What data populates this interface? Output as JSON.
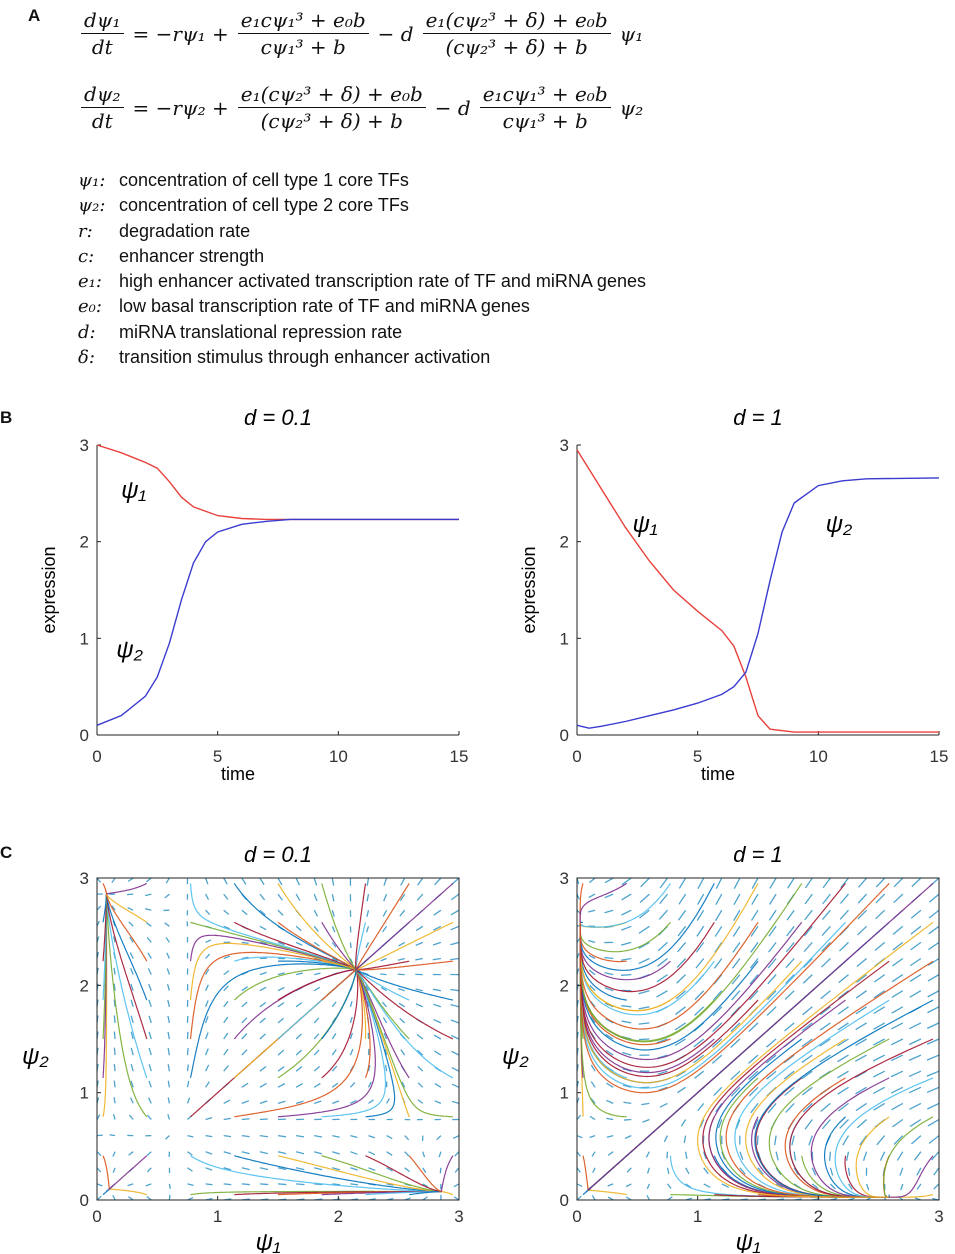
{
  "panel_labels": [
    "A",
    "B",
    "C"
  ],
  "equations": {
    "eq1": {
      "lhs_num": "dψ₁",
      "lhs_den": "dt",
      "term1": "= −rψ₁ +",
      "f1_num": "e₁cψ₁³ + e₀b",
      "f1_den": "cψ₁³ + b",
      "minus_d": "− d",
      "f2_num": "e₁(cψ₂³ + δ) + e₀b",
      "f2_den": "(cψ₂³ + δ) + b",
      "tail": "ψ₁"
    },
    "eq2": {
      "lhs_num": "dψ₂",
      "lhs_den": "dt",
      "term1": "= −rψ₂ +",
      "f1_num": "e₁(cψ₂³ + δ) + e₀b",
      "f1_den": "(cψ₂³ + δ) + b",
      "minus_d": "− d",
      "f2_num": "e₁cψ₁³ + e₀b",
      "f2_den": "cψ₁³ + b",
      "tail": "ψ₂"
    }
  },
  "definitions": [
    {
      "sym": "ψ₁:",
      "text": "concentration of cell type 1 core TFs"
    },
    {
      "sym": "ψ₂:",
      "text": "concentration of cell type 2 core TFs"
    },
    {
      "sym": "r:",
      "text": "degradation rate"
    },
    {
      "sym": "c:",
      "text": "enhancer strength"
    },
    {
      "sym": "e₁:",
      "text": "high enhancer activated transcription rate of TF and miRNA genes"
    },
    {
      "sym": "e₀:",
      "text": "low basal transcription rate of TF and miRNA genes"
    },
    {
      "sym": "d:",
      "text": "miRNA translational repression rate"
    },
    {
      "sym": "δ:",
      "text": "transition stimulus through enhancer activation"
    }
  ],
  "colors": {
    "psi1": "#e8413c",
    "psi2": "#3b3bd0",
    "arrows": "#2f93c4"
  },
  "chart_data": [
    {
      "type": "line",
      "panel": "B",
      "title": "d = 0.1",
      "xlabel": "time",
      "ylabel": "expression",
      "xlim": [
        0,
        15
      ],
      "ylim": [
        0,
        3
      ],
      "xticks": [
        "0",
        "5",
        "10",
        "15"
      ],
      "yticks": [
        "0",
        "1",
        "2",
        "3"
      ],
      "series": [
        {
          "name": "ψ1",
          "x": [
            0,
            1,
            2,
            2.5,
            3,
            3.5,
            4,
            5,
            6,
            7,
            8,
            10,
            15
          ],
          "values": [
            3.0,
            2.92,
            2.82,
            2.76,
            2.62,
            2.46,
            2.36,
            2.27,
            2.24,
            2.23,
            2.23,
            2.23,
            2.23
          ]
        },
        {
          "name": "ψ2",
          "x": [
            0,
            1,
            2,
            2.5,
            3,
            3.5,
            4,
            4.5,
            5,
            6,
            7,
            8,
            10,
            15
          ],
          "values": [
            0.1,
            0.2,
            0.4,
            0.6,
            0.95,
            1.4,
            1.78,
            2.0,
            2.1,
            2.18,
            2.21,
            2.23,
            2.23,
            2.23
          ]
        }
      ],
      "annotations": [
        "ψ1",
        "ψ2"
      ]
    },
    {
      "type": "line",
      "panel": "B",
      "title": "d = 1",
      "xlabel": "time",
      "ylabel": "expression",
      "xlim": [
        0,
        15
      ],
      "ylim": [
        0,
        3
      ],
      "xticks": [
        "0",
        "5",
        "10",
        "15"
      ],
      "yticks": [
        "0",
        "1",
        "2",
        "3"
      ],
      "series": [
        {
          "name": "ψ1",
          "x": [
            0,
            1,
            2,
            3,
            4,
            5,
            6,
            6.5,
            7,
            7.5,
            8,
            9,
            10,
            15
          ],
          "values": [
            2.95,
            2.55,
            2.15,
            1.8,
            1.5,
            1.28,
            1.08,
            0.92,
            0.6,
            0.2,
            0.06,
            0.03,
            0.03,
            0.03
          ]
        },
        {
          "name": "ψ2",
          "x": [
            0,
            0.5,
            1,
            2,
            3,
            4,
            5,
            6,
            6.5,
            7,
            7.5,
            8,
            8.5,
            9,
            10,
            11,
            12,
            15
          ],
          "values": [
            0.1,
            0.07,
            0.09,
            0.14,
            0.2,
            0.26,
            0.33,
            0.42,
            0.5,
            0.65,
            1.05,
            1.6,
            2.1,
            2.4,
            2.58,
            2.63,
            2.65,
            2.66
          ]
        }
      ],
      "annotations": [
        "ψ1",
        "ψ2"
      ]
    },
    {
      "type": "vector-field",
      "panel": "C",
      "title": "d = 0.1",
      "xlabel": "ψ1",
      "ylabel": "ψ2",
      "xlim": [
        0,
        3
      ],
      "ylim": [
        0,
        3
      ],
      "xticks": [
        "0",
        "1",
        "2",
        "3"
      ],
      "yticks": [
        "0",
        "1",
        "2",
        "3"
      ],
      "stable_points": [
        [
          2.23,
          2.23
        ],
        [
          0.1,
          2.9
        ],
        [
          2.9,
          0.1
        ]
      ]
    },
    {
      "type": "vector-field",
      "panel": "C",
      "title": "d = 1",
      "xlabel": "ψ1",
      "ylabel": "ψ2",
      "xlim": [
        0,
        3
      ],
      "ylim": [
        0,
        3
      ],
      "xticks": [
        "0",
        "1",
        "2",
        "3"
      ],
      "yticks": [
        "0",
        "1",
        "2",
        "3"
      ],
      "stable_points": [
        [
          0.03,
          2.66
        ],
        [
          2.66,
          0.03
        ]
      ]
    }
  ]
}
